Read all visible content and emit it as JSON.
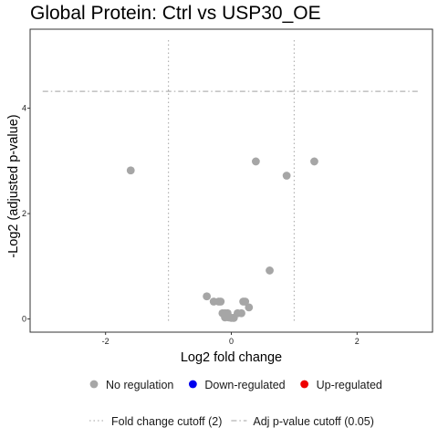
{
  "chart_data": {
    "type": "scatter",
    "title": "Global Protein: Ctrl vs USP30_OE",
    "xlabel": "Log2 fold change",
    "ylabel": "-Log2 (adjusted p-value)",
    "xlim": [
      -3.2,
      3.2
    ],
    "ylim": [
      -0.25,
      5.5
    ],
    "x_ticks": [
      -2,
      0,
      2
    ],
    "y_ticks": [
      0,
      2,
      4
    ],
    "grid": false,
    "fold_change_cutoff": [
      -1,
      1
    ],
    "adj_p_cutoff_line": 4.32,
    "series": [
      {
        "name": "No regulation",
        "color": "#a6a6a6",
        "points": [
          {
            "x": -1.6,
            "y": 2.82
          },
          {
            "x": 0.39,
            "y": 2.99
          },
          {
            "x": 0.88,
            "y": 2.72
          },
          {
            "x": 1.32,
            "y": 2.99
          },
          {
            "x": 0.61,
            "y": 0.92
          },
          {
            "x": -0.39,
            "y": 0.43
          },
          {
            "x": -0.28,
            "y": 0.33
          },
          {
            "x": -0.2,
            "y": 0.33
          },
          {
            "x": -0.17,
            "y": 0.33
          },
          {
            "x": 0.19,
            "y": 0.33
          },
          {
            "x": 0.22,
            "y": 0.33
          },
          {
            "x": 0.28,
            "y": 0.22
          },
          {
            "x": -0.14,
            "y": 0.11
          },
          {
            "x": -0.1,
            "y": 0.11
          },
          {
            "x": -0.06,
            "y": 0.11
          },
          {
            "x": 0.1,
            "y": 0.11
          },
          {
            "x": 0.16,
            "y": 0.11
          },
          {
            "x": -0.1,
            "y": 0.03
          },
          {
            "x": -0.04,
            "y": 0.03
          },
          {
            "x": 0.0,
            "y": 0.02
          },
          {
            "x": 0.04,
            "y": 0.02
          }
        ]
      },
      {
        "name": "Down-regulated",
        "color": "#0000ee",
        "points": []
      },
      {
        "name": "Up-regulated",
        "color": "#ee0000",
        "points": []
      }
    ],
    "legend": {
      "placement": "bottom",
      "points": [
        {
          "label": "No regulation",
          "color": "#a6a6a6"
        },
        {
          "label": "Down-regulated",
          "color": "#0000ee"
        },
        {
          "label": "Up-regulated",
          "color": "#ee0000"
        }
      ],
      "lines": [
        {
          "label": "Fold change cutoff (2)",
          "style": "dotted",
          "color": "#b3b3b3"
        },
        {
          "label": "Adj p-value cutoff (0.05)",
          "style": "dashdot",
          "color": "#b3b3b3"
        }
      ]
    }
  }
}
